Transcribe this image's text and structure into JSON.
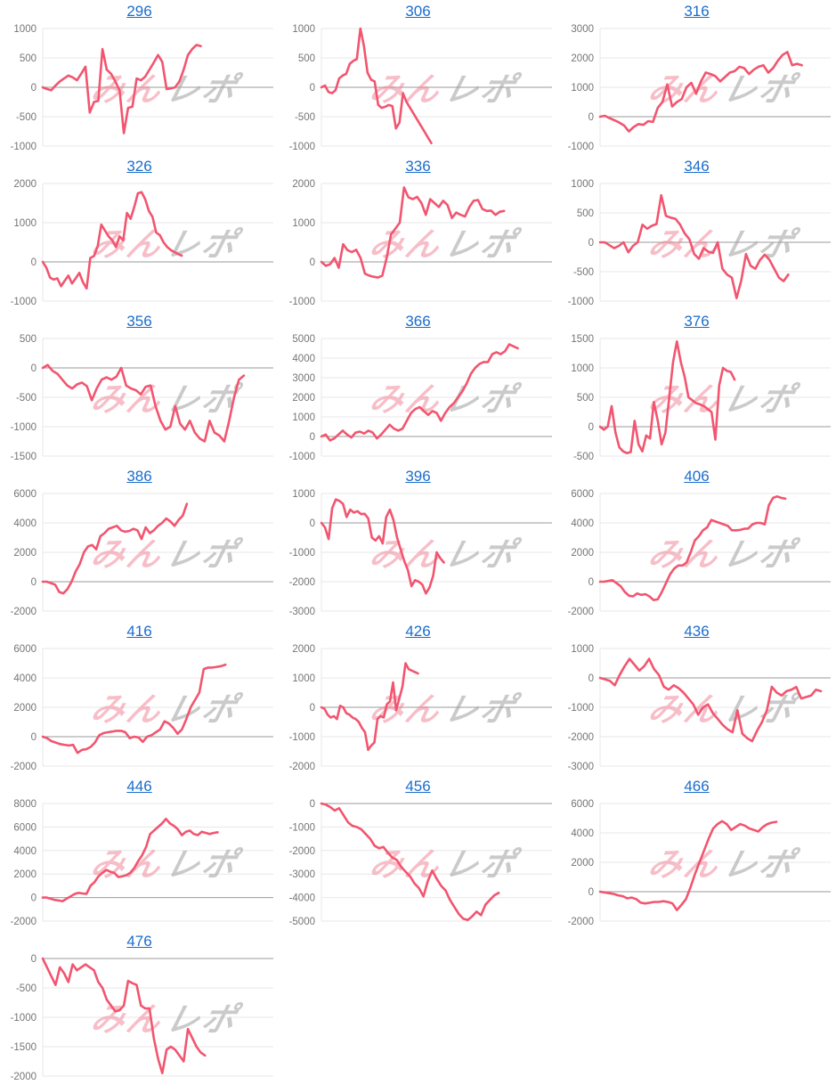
{
  "styles": {
    "line_color": "#f2556f",
    "title_color": "#1b6dcc",
    "grid_color": "#e7e7e7",
    "zero_color": "#9a9a9a",
    "label_color": "#757575",
    "watermark_pink": "#ef7d92",
    "watermark_gray": "#9e9e9e"
  },
  "watermark": {
    "text": "みんレポ",
    "part1": "みん",
    "part2": "レポ"
  },
  "chart_data": [
    {
      "type": "line",
      "title": "296",
      "ymax": 1000,
      "ymin": -1000,
      "ystep": 500,
      "slots": 55,
      "ytick_labels": [
        "1000",
        "500",
        "0",
        "-500",
        "-1000"
      ],
      "values": [
        0,
        -30,
        -50,
        30,
        100,
        150,
        200,
        170,
        120,
        230,
        350,
        -430,
        -250,
        -230,
        650,
        300,
        230,
        100,
        -50,
        -780,
        -350,
        -330,
        150,
        120,
        180,
        300,
        420,
        550,
        430,
        -30,
        -20,
        0,
        100,
        300,
        550,
        650,
        720,
        700
      ]
    },
    {
      "type": "line",
      "title": "306",
      "ymax": 1000,
      "ymin": -1000,
      "ystep": 500,
      "slots": 66,
      "ytick_labels": [
        "1000",
        "500",
        "0",
        "-500",
        "-1000"
      ],
      "values": [
        0,
        30,
        -80,
        -100,
        -50,
        150,
        200,
        230,
        400,
        450,
        480,
        1000,
        700,
        250,
        130,
        100,
        -300,
        -350,
        -330,
        -300,
        -320,
        -700,
        -600,
        -100,
        -250,
        -350,
        -450,
        -550,
        -650,
        -750,
        -850,
        -950
      ]
    },
    {
      "type": "line",
      "title": "316",
      "ymax": 3000,
      "ymin": -1000,
      "ystep": 1000,
      "slots": 49,
      "ytick_labels": [
        "3000",
        "2000",
        "1000",
        "0",
        "-1000"
      ],
      "values": [
        0,
        30,
        -50,
        -120,
        -200,
        -300,
        -500,
        -350,
        -250,
        -280,
        -150,
        -180,
        300,
        500,
        1100,
        350,
        500,
        600,
        1000,
        1150,
        780,
        1200,
        1500,
        1450,
        1380,
        1200,
        1350,
        1500,
        1550,
        1700,
        1650,
        1450,
        1600,
        1700,
        1750,
        1500,
        1650,
        1900,
        2100,
        2200,
        1750,
        1800,
        1750
      ]
    },
    {
      "type": "line",
      "title": "326",
      "ymax": 2000,
      "ymin": -1000,
      "ystep": 1000,
      "slots": 64,
      "ytick_labels": [
        "2000",
        "1000",
        "0",
        "-1000"
      ],
      "values": [
        0,
        -150,
        -400,
        -450,
        -420,
        -620,
        -480,
        -350,
        -550,
        -420,
        -280,
        -520,
        -680,
        100,
        150,
        400,
        950,
        800,
        650,
        550,
        380,
        650,
        550,
        1250,
        1100,
        1400,
        1750,
        1780,
        1600,
        1300,
        1150,
        750,
        680,
        500,
        380,
        300,
        250,
        200,
        160
      ]
    },
    {
      "type": "line",
      "title": "336",
      "ymax": 2000,
      "ymin": -1000,
      "ystep": 1000,
      "slots": 54,
      "ytick_labels": [
        "2000",
        "1000",
        "0",
        "-1000"
      ],
      "values": [
        0,
        -100,
        -60,
        100,
        -150,
        450,
        300,
        250,
        310,
        100,
        -300,
        -350,
        -380,
        -400,
        -350,
        100,
        700,
        850,
        1000,
        1900,
        1650,
        1600,
        1660,
        1500,
        1200,
        1600,
        1500,
        1400,
        1560,
        1450,
        1120,
        1260,
        1200,
        1160,
        1400,
        1560,
        1580,
        1350,
        1300,
        1310,
        1200,
        1280,
        1300
      ]
    },
    {
      "type": "line",
      "title": "346",
      "ymax": 1000,
      "ymin": -1000,
      "ystep": 500,
      "slots": 50,
      "ytick_labels": [
        "1000",
        "500",
        "0",
        "-500",
        "-1000"
      ],
      "values": [
        0,
        0,
        -50,
        -100,
        -60,
        0,
        -170,
        -60,
        0,
        300,
        230,
        280,
        310,
        800,
        450,
        420,
        400,
        300,
        150,
        50,
        -200,
        -280,
        -100,
        -160,
        -180,
        0,
        -450,
        -550,
        -600,
        -950,
        -650,
        -200,
        -400,
        -450,
        -300,
        -210,
        -300,
        -450,
        -600,
        -660,
        -550
      ]
    },
    {
      "type": "line",
      "title": "356",
      "ymax": 500,
      "ymin": -1500,
      "ystep": 500,
      "slots": 48,
      "ytick_labels": [
        "500",
        "0",
        "-500",
        "-1000",
        "-1500"
      ],
      "values": [
        0,
        50,
        -50,
        -100,
        -200,
        -300,
        -350,
        -280,
        -250,
        -310,
        -550,
        -350,
        -200,
        -160,
        -200,
        -150,
        0,
        -300,
        -350,
        -380,
        -450,
        -320,
        -300,
        -650,
        -900,
        -1050,
        -1000,
        -650,
        -950,
        -1050,
        -900,
        -1100,
        -1200,
        -1250,
        -900,
        -1100,
        -1150,
        -1250,
        -900,
        -500,
        -200,
        -130
      ]
    },
    {
      "type": "line",
      "title": "366",
      "ymax": 5000,
      "ymin": -1000,
      "ystep": 1000,
      "slots": 55,
      "ytick_labels": [
        "5000",
        "4000",
        "3000",
        "2000",
        "1000",
        "0",
        "-1000"
      ],
      "values": [
        0,
        100,
        -200,
        -100,
        100,
        300,
        100,
        -50,
        200,
        250,
        150,
        300,
        200,
        -100,
        100,
        350,
        600,
        400,
        300,
        400,
        800,
        1200,
        1400,
        1500,
        1300,
        1100,
        1300,
        1200,
        800,
        1200,
        1500,
        1700,
        2000,
        2300,
        2700,
        3200,
        3500,
        3700,
        3800,
        3800,
        4200,
        4300,
        4200,
        4350,
        4700,
        4600,
        4500
      ]
    },
    {
      "type": "line",
      "title": "376",
      "ymax": 1500,
      "ymin": -500,
      "ystep": 500,
      "slots": 61,
      "ytick_labels": [
        "1500",
        "1000",
        "500",
        "0",
        "-500"
      ],
      "values": [
        0,
        -50,
        0,
        350,
        -100,
        -350,
        -420,
        -450,
        -430,
        100,
        -300,
        -420,
        -150,
        -200,
        420,
        100,
        -300,
        -100,
        500,
        1100,
        1450,
        1100,
        850,
        500,
        450,
        400,
        380,
        350,
        300,
        250,
        -220,
        700,
        1000,
        950,
        930,
        800
      ]
    },
    {
      "type": "line",
      "title": "386",
      "ymax": 6000,
      "ymin": -2000,
      "ystep": 2000,
      "slots": 57,
      "ytick_labels": [
        "6000",
        "4000",
        "2000",
        "0",
        "-2000"
      ],
      "values": [
        0,
        0,
        -100,
        -200,
        -700,
        -800,
        -500,
        0,
        700,
        1200,
        2000,
        2400,
        2500,
        2200,
        3100,
        3300,
        3600,
        3700,
        3800,
        3500,
        3400,
        3450,
        3600,
        3500,
        2900,
        3700,
        3300,
        3500,
        3800,
        4000,
        4300,
        4100,
        3800,
        4200,
        4500,
        5300
      ]
    },
    {
      "type": "line",
      "title": "396",
      "ymax": 1000,
      "ymin": -3000,
      "ystep": 1000,
      "slots": 65,
      "ytick_labels": [
        "1000",
        "0",
        "-1000",
        "-2000",
        "-3000"
      ],
      "values": [
        0,
        -150,
        -550,
        500,
        800,
        750,
        650,
        200,
        450,
        350,
        400,
        300,
        310,
        150,
        -500,
        -600,
        -450,
        -700,
        200,
        450,
        100,
        -500,
        -900,
        -1300,
        -1600,
        -2150,
        -1950,
        -2000,
        -2100,
        -2400,
        -2200,
        -1800,
        -1000,
        -1200,
        -1350
      ]
    },
    {
      "type": "line",
      "title": "406",
      "ymax": 6000,
      "ymin": -2000,
      "ystep": 2000,
      "slots": 57,
      "ytick_labels": [
        "6000",
        "4000",
        "2000",
        "0",
        "-2000"
      ],
      "values": [
        0,
        0,
        50,
        100,
        -100,
        -300,
        -700,
        -950,
        -1000,
        -800,
        -900,
        -850,
        -1000,
        -1250,
        -1200,
        -700,
        -100,
        500,
        900,
        1100,
        1100,
        1300,
        2000,
        2800,
        3100,
        3500,
        3700,
        4200,
        4100,
        4000,
        3900,
        3800,
        3500,
        3500,
        3520,
        3600,
        3620,
        3900,
        4000,
        4000,
        3900,
        5200,
        5700,
        5800,
        5700,
        5650
      ]
    },
    {
      "type": "line",
      "title": "416",
      "ymax": 6000,
      "ymin": -2000,
      "ystep": 2000,
      "slots": 54,
      "ytick_labels": [
        "6000",
        "4000",
        "2000",
        "0",
        "-2000"
      ],
      "values": [
        0,
        -100,
        -300,
        -400,
        -500,
        -550,
        -600,
        -560,
        -1100,
        -900,
        -850,
        -700,
        -400,
        100,
        250,
        300,
        350,
        400,
        400,
        300,
        -100,
        0,
        -50,
        -350,
        0,
        100,
        300,
        500,
        1050,
        900,
        600,
        200,
        500,
        1200,
        2000,
        2500,
        3000,
        4600,
        4700,
        4700,
        4750,
        4800,
        4900
      ]
    },
    {
      "type": "line",
      "title": "426",
      "ymax": 2000,
      "ymin": -2000,
      "ystep": 1000,
      "slots": 75,
      "ytick_labels": [
        "2000",
        "1000",
        "0",
        "-1000",
        "-2000"
      ],
      "values": [
        0,
        -50,
        -250,
        -350,
        -300,
        -400,
        50,
        0,
        -200,
        -250,
        -350,
        -400,
        -500,
        -700,
        -850,
        -1450,
        -1300,
        -1200,
        -400,
        -300,
        -350,
        100,
        200,
        850,
        -100,
        300,
        700,
        1500,
        1300,
        1250,
        1200,
        1150
      ]
    },
    {
      "type": "line",
      "title": "436",
      "ymax": 1000,
      "ymin": -3000,
      "ystep": 1000,
      "slots": 48,
      "ytick_labels": [
        "1000",
        "0",
        "-1000",
        "-2000",
        "-3000"
      ],
      "values": [
        0,
        -50,
        -100,
        -250,
        100,
        400,
        650,
        450,
        250,
        400,
        650,
        300,
        100,
        -300,
        -400,
        -250,
        -350,
        -500,
        -700,
        -900,
        -1250,
        -1000,
        -900,
        -1200,
        -1400,
        -1600,
        -1750,
        -1850,
        -1100,
        -1900,
        -2050,
        -2150,
        -1800,
        -1500,
        -1100,
        -300,
        -500,
        -600,
        -450,
        -400,
        -310,
        -700,
        -650,
        -600,
        -400,
        -450
      ]
    },
    {
      "type": "line",
      "title": "446",
      "ymax": 8000,
      "ymin": -2000,
      "ystep": 2000,
      "slots": 59,
      "ytick_labels": [
        "8000",
        "6000",
        "4000",
        "2000",
        "0",
        "-2000"
      ],
      "values": [
        0,
        0,
        -100,
        -200,
        -250,
        -300,
        -100,
        100,
        300,
        400,
        350,
        310,
        1000,
        1300,
        1800,
        2100,
        2350,
        2200,
        2100,
        1750,
        1800,
        1900,
        2100,
        2500,
        3100,
        3600,
        4300,
        5400,
        5700,
        6000,
        6300,
        6700,
        6300,
        6100,
        5800,
        5300,
        5600,
        5700,
        5400,
        5310,
        5600,
        5500,
        5400,
        5500,
        5550
      ]
    },
    {
      "type": "line",
      "title": "456",
      "ymax": 0,
      "ymin": -5000,
      "ystep": 1000,
      "slots": 53,
      "ytick_labels": [
        "0",
        "-1000",
        "-2000",
        "-3000",
        "-4000",
        "-5000"
      ],
      "values": [
        0,
        -50,
        -150,
        -300,
        -200,
        -500,
        -800,
        -950,
        -1000,
        -1100,
        -1300,
        -1500,
        -1800,
        -1900,
        -1850,
        -2100,
        -2300,
        -2400,
        -2700,
        -2900,
        -3100,
        -3400,
        -3600,
        -3950,
        -3300,
        -2850,
        -3200,
        -3500,
        -3700,
        -4100,
        -4400,
        -4700,
        -4900,
        -4950,
        -4800,
        -4600,
        -4750,
        -4300,
        -4100,
        -3900,
        -3800
      ]
    },
    {
      "type": "line",
      "title": "466",
      "ymax": 6000,
      "ymin": -2000,
      "ystep": 2000,
      "slots": 52,
      "ytick_labels": [
        "6000",
        "4000",
        "2000",
        "0",
        "-2000"
      ],
      "values": [
        0,
        -50,
        -100,
        -150,
        -250,
        -300,
        -450,
        -400,
        -500,
        -750,
        -800,
        -750,
        -700,
        -700,
        -650,
        -700,
        -800,
        -1250,
        -900,
        -500,
        300,
        1200,
        2000,
        2800,
        3600,
        4300,
        4600,
        4800,
        4600,
        4200,
        4400,
        4600,
        4500,
        4300,
        4200,
        4100,
        4400,
        4600,
        4700,
        4750
      ]
    },
    {
      "type": "line",
      "title": "476",
      "ymax": 0,
      "ymin": -2000,
      "ystep": 500,
      "slots": 55,
      "ytick_labels": [
        "0",
        "-500",
        "-1000",
        "-1500",
        "-2000"
      ],
      "values": [
        0,
        -150,
        -300,
        -450,
        -150,
        -250,
        -400,
        -100,
        -200,
        -150,
        -100,
        -150,
        -200,
        -400,
        -500,
        -700,
        -800,
        -900,
        -880,
        -800,
        -380,
        -420,
        -450,
        -800,
        -850,
        -850,
        -1350,
        -1700,
        -1950,
        -1550,
        -1500,
        -1550,
        -1650,
        -1750,
        -1200,
        -1350,
        -1500,
        -1600,
        -1650
      ]
    }
  ]
}
